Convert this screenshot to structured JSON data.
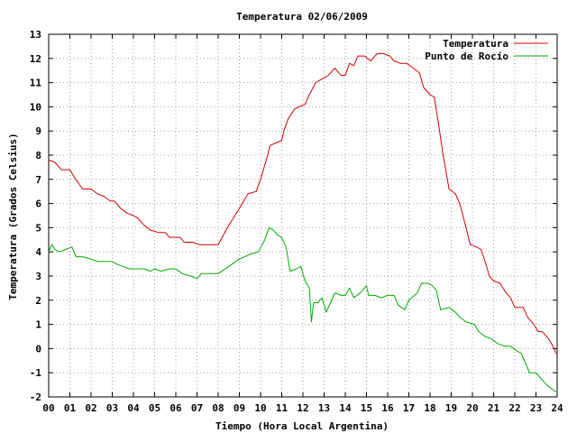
{
  "chart_data": {
    "type": "line",
    "title": "Temperatura 02/06/2009",
    "xlabel": "Tiempo (Hora Local Argentina)",
    "ylabel": "Temperatura (Grados Celsius)",
    "xlim": [
      0,
      24
    ],
    "ylim": [
      -2,
      13
    ],
    "x_ticks": [
      "00",
      "01",
      "02",
      "03",
      "04",
      "05",
      "06",
      "07",
      "08",
      "09",
      "10",
      "11",
      "12",
      "13",
      "14",
      "15",
      "16",
      "17",
      "18",
      "19",
      "20",
      "21",
      "22",
      "23",
      "24"
    ],
    "y_ticks": [
      -2,
      -1,
      0,
      1,
      2,
      3,
      4,
      5,
      6,
      7,
      8,
      9,
      10,
      11,
      12,
      13
    ],
    "grid": true,
    "legend_position": "top-right",
    "series": [
      {
        "name": "Temperatura",
        "color": "#d00000",
        "points": [
          [
            0.0,
            7.8
          ],
          [
            0.3,
            7.7
          ],
          [
            0.6,
            7.4
          ],
          [
            1.0,
            7.4
          ],
          [
            1.2,
            7.1
          ],
          [
            1.6,
            6.6
          ],
          [
            2.0,
            6.6
          ],
          [
            2.3,
            6.4
          ],
          [
            2.6,
            6.3
          ],
          [
            2.9,
            6.1
          ],
          [
            3.1,
            6.1
          ],
          [
            3.4,
            5.8
          ],
          [
            3.7,
            5.6
          ],
          [
            4.0,
            5.5
          ],
          [
            4.2,
            5.4
          ],
          [
            4.5,
            5.1
          ],
          [
            4.8,
            4.9
          ],
          [
            5.2,
            4.8
          ],
          [
            5.5,
            4.8
          ],
          [
            5.7,
            4.6
          ],
          [
            6.2,
            4.6
          ],
          [
            6.4,
            4.4
          ],
          [
            6.8,
            4.4
          ],
          [
            7.1,
            4.3
          ],
          [
            7.5,
            4.3
          ],
          [
            8.0,
            4.3
          ],
          [
            8.5,
            5.1
          ],
          [
            9.0,
            5.8
          ],
          [
            9.4,
            6.4
          ],
          [
            9.8,
            6.5
          ],
          [
            10.0,
            7.0
          ],
          [
            10.3,
            7.9
          ],
          [
            10.45,
            8.4
          ],
          [
            10.7,
            8.5
          ],
          [
            11.0,
            8.6
          ],
          [
            11.1,
            9.0
          ],
          [
            11.3,
            9.5
          ],
          [
            11.6,
            9.9
          ],
          [
            11.8,
            10.0
          ],
          [
            12.1,
            10.1
          ],
          [
            12.3,
            10.5
          ],
          [
            12.6,
            11.0
          ],
          [
            13.0,
            11.2
          ],
          [
            13.2,
            11.3
          ],
          [
            13.5,
            11.6
          ],
          [
            13.8,
            11.3
          ],
          [
            14.0,
            11.3
          ],
          [
            14.2,
            11.8
          ],
          [
            14.4,
            11.7
          ],
          [
            14.6,
            12.1
          ],
          [
            14.9,
            12.1
          ],
          [
            15.2,
            11.9
          ],
          [
            15.5,
            12.2
          ],
          [
            15.8,
            12.2
          ],
          [
            16.1,
            12.1
          ],
          [
            16.3,
            11.9
          ],
          [
            16.6,
            11.8
          ],
          [
            16.9,
            11.8
          ],
          [
            17.2,
            11.6
          ],
          [
            17.5,
            11.4
          ],
          [
            17.7,
            10.8
          ],
          [
            18.0,
            10.5
          ],
          [
            18.2,
            10.4
          ],
          [
            18.4,
            9.3
          ],
          [
            18.6,
            8.1
          ],
          [
            18.9,
            6.6
          ],
          [
            19.2,
            6.4
          ],
          [
            19.4,
            6.0
          ],
          [
            19.7,
            5.0
          ],
          [
            19.9,
            4.3
          ],
          [
            20.2,
            4.2
          ],
          [
            20.4,
            4.1
          ],
          [
            20.6,
            3.6
          ],
          [
            20.8,
            3.0
          ],
          [
            21.0,
            2.8
          ],
          [
            21.3,
            2.7
          ],
          [
            21.6,
            2.3
          ],
          [
            21.8,
            2.1
          ],
          [
            22.0,
            1.7
          ],
          [
            22.4,
            1.7
          ],
          [
            22.6,
            1.3
          ],
          [
            22.9,
            1.0
          ],
          [
            23.1,
            0.7
          ],
          [
            23.3,
            0.7
          ],
          [
            23.6,
            0.4
          ],
          [
            23.8,
            0.1
          ],
          [
            23.95,
            -0.2
          ]
        ]
      },
      {
        "name": "Punto de Rocío",
        "color": "#00aa00",
        "points": [
          [
            0.0,
            4.0
          ],
          [
            0.15,
            4.3
          ],
          [
            0.3,
            4.1
          ],
          [
            0.5,
            4.0
          ],
          [
            0.8,
            4.1
          ],
          [
            1.1,
            4.2
          ],
          [
            1.3,
            3.8
          ],
          [
            1.6,
            3.8
          ],
          [
            2.0,
            3.7
          ],
          [
            2.3,
            3.6
          ],
          [
            2.6,
            3.6
          ],
          [
            3.0,
            3.6
          ],
          [
            3.2,
            3.5
          ],
          [
            3.5,
            3.4
          ],
          [
            3.8,
            3.3
          ],
          [
            4.2,
            3.3
          ],
          [
            4.5,
            3.3
          ],
          [
            4.8,
            3.2
          ],
          [
            5.0,
            3.3
          ],
          [
            5.3,
            3.2
          ],
          [
            5.7,
            3.3
          ],
          [
            6.0,
            3.3
          ],
          [
            6.3,
            3.1
          ],
          [
            6.7,
            3.0
          ],
          [
            7.0,
            2.9
          ],
          [
            7.2,
            3.1
          ],
          [
            7.6,
            3.1
          ],
          [
            8.0,
            3.1
          ],
          [
            8.5,
            3.4
          ],
          [
            9.0,
            3.7
          ],
          [
            9.5,
            3.9
          ],
          [
            9.9,
            4.0
          ],
          [
            10.2,
            4.5
          ],
          [
            10.4,
            5.0
          ],
          [
            10.6,
            4.9
          ],
          [
            10.8,
            4.7
          ],
          [
            11.0,
            4.6
          ],
          [
            11.2,
            4.2
          ],
          [
            11.4,
            3.2
          ],
          [
            11.7,
            3.3
          ],
          [
            11.9,
            3.4
          ],
          [
            12.1,
            2.8
          ],
          [
            12.3,
            2.5
          ],
          [
            12.4,
            1.1
          ],
          [
            12.5,
            1.9
          ],
          [
            12.7,
            1.9
          ],
          [
            12.9,
            2.1
          ],
          [
            13.1,
            1.5
          ],
          [
            13.3,
            1.9
          ],
          [
            13.5,
            2.3
          ],
          [
            13.8,
            2.2
          ],
          [
            14.0,
            2.2
          ],
          [
            14.2,
            2.5
          ],
          [
            14.4,
            2.1
          ],
          [
            14.7,
            2.3
          ],
          [
            15.0,
            2.6
          ],
          [
            15.1,
            2.2
          ],
          [
            15.4,
            2.2
          ],
          [
            15.7,
            2.1
          ],
          [
            16.0,
            2.2
          ],
          [
            16.3,
            2.2
          ],
          [
            16.5,
            1.8
          ],
          [
            16.8,
            1.6
          ],
          [
            17.0,
            2.0
          ],
          [
            17.4,
            2.3
          ],
          [
            17.6,
            2.7
          ],
          [
            17.9,
            2.7
          ],
          [
            18.1,
            2.6
          ],
          [
            18.3,
            2.4
          ],
          [
            18.5,
            1.6
          ],
          [
            18.9,
            1.7
          ],
          [
            19.2,
            1.5
          ],
          [
            19.4,
            1.3
          ],
          [
            19.7,
            1.1
          ],
          [
            20.1,
            1.0
          ],
          [
            20.3,
            0.7
          ],
          [
            20.6,
            0.5
          ],
          [
            20.9,
            0.4
          ],
          [
            21.2,
            0.2
          ],
          [
            21.5,
            0.1
          ],
          [
            21.8,
            0.1
          ],
          [
            22.1,
            -0.1
          ],
          [
            22.3,
            -0.2
          ],
          [
            22.5,
            -0.6
          ],
          [
            22.7,
            -1.0
          ],
          [
            23.0,
            -1.0
          ],
          [
            23.3,
            -1.3
          ],
          [
            23.5,
            -1.5
          ],
          [
            23.8,
            -1.7
          ],
          [
            23.95,
            -1.8
          ]
        ]
      }
    ]
  }
}
